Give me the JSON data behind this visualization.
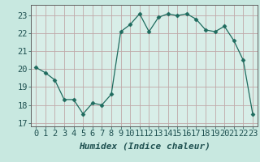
{
  "x": [
    0,
    1,
    2,
    3,
    4,
    5,
    6,
    7,
    8,
    9,
    10,
    11,
    12,
    13,
    14,
    15,
    16,
    17,
    18,
    19,
    20,
    21,
    22,
    23
  ],
  "y": [
    20.1,
    19.8,
    19.4,
    18.3,
    18.3,
    17.5,
    18.1,
    18.0,
    18.6,
    22.1,
    22.5,
    23.1,
    22.1,
    22.9,
    23.1,
    23.0,
    23.1,
    22.8,
    22.2,
    22.1,
    22.4,
    21.6,
    20.5,
    17.5
  ],
  "xlabel": "Humidex (Indice chaleur)",
  "ylim": [
    16.8,
    23.6
  ],
  "xlim": [
    -0.5,
    23.5
  ],
  "yticks": [
    17,
    18,
    19,
    20,
    21,
    22,
    23
  ],
  "xticks": [
    0,
    1,
    2,
    3,
    4,
    5,
    6,
    7,
    8,
    9,
    10,
    11,
    12,
    13,
    14,
    15,
    16,
    17,
    18,
    19,
    20,
    21,
    22,
    23
  ],
  "line_color": "#1e6b5e",
  "marker": "D",
  "marker_size": 2.5,
  "bg_color": "#c8e8e0",
  "plot_bg_color": "#d8eee8",
  "grid_color_v": "#c0a8a8",
  "grid_color_h": "#c0a8a8",
  "axis_color": "#606060",
  "xlabel_fontsize": 8,
  "tick_fontsize": 7.5,
  "tick_color": "#1e5050"
}
